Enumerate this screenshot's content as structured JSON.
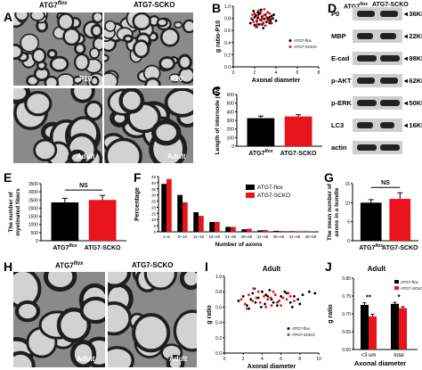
{
  "panels": {
    "A": {
      "letter": "A",
      "col1": "ATG7",
      "col1_sup": "flox",
      "col2": "ATG7-SCKO",
      "tag_top_left": "P10",
      "tag_top_right": "P10",
      "tag_bottom_left": "Adult",
      "tag_bottom_right": "Adult"
    },
    "B": {
      "letter": "B"
    },
    "C": {
      "letter": "C"
    },
    "D": {
      "letter": "D",
      "col1": "ATG7",
      "col1_sup": "flox",
      "col2": "ATG7-SCKO",
      "bands": [
        {
          "name": "P0",
          "kda": "36KDa"
        },
        {
          "name": "MBP",
          "kda": "22KDa"
        },
        {
          "name": "E-cad",
          "kda": "98KDa"
        },
        {
          "name": "p-AKT",
          "kda": "62KDa"
        },
        {
          "name": "p-ERK",
          "kda": "50KDa"
        },
        {
          "name": "LC3",
          "kda": "16KDa"
        },
        {
          "name": "actin",
          "kda": ""
        }
      ]
    },
    "E": {
      "letter": "E"
    },
    "F": {
      "letter": "F"
    },
    "G": {
      "letter": "G"
    },
    "H": {
      "letter": "H",
      "col1": "ATG7",
      "col1_sup": "flox",
      "col2": "ATG7-SCKO",
      "tag_left": "Adult",
      "tag_right": "Adult"
    },
    "I": {
      "letter": "I"
    },
    "J": {
      "letter": "J"
    }
  },
  "colors": {
    "flox": "#000000",
    "scko": "#e8131b",
    "em_bg": "#8a8a8a",
    "em_dark": "#1e1e1e",
    "em_light": "#d2d2d2"
  },
  "chart_data": [
    {
      "id": "B",
      "type": "scatter",
      "title": "",
      "xlabel": "Axonal diameter",
      "ylabel": "g ratio-P10",
      "xlim": [
        0,
        8
      ],
      "ylim": [
        0,
        1
      ],
      "xticks": [
        "0",
        "2",
        "4",
        "6",
        "8"
      ],
      "yticks": [
        "0.0",
        "0.2",
        "0.4",
        "0.6",
        "0.8",
        "1.0"
      ],
      "legend": [
        "ATG7-flox",
        "ATG7-SCKO"
      ],
      "legend_position": "right",
      "series": [
        {
          "name": "ATG7-flox",
          "x": [
            1.6,
            1.8,
            2.0,
            2.1,
            2.2,
            2.3,
            2.4,
            2.5,
            2.6,
            2.7,
            2.8,
            2.9,
            3.0,
            3.1,
            3.2,
            3.3,
            3.4,
            3.5,
            3.6,
            3.7,
            1.9,
            2.2,
            2.6,
            3.0,
            3.4,
            2.0,
            2.4,
            2.8,
            3.2,
            3.8,
            4.0,
            2.3,
            2.7
          ],
          "y": [
            0.72,
            0.78,
            0.69,
            0.85,
            0.75,
            0.81,
            0.7,
            0.88,
            0.77,
            0.83,
            0.72,
            0.79,
            0.86,
            0.74,
            0.9,
            0.78,
            0.82,
            0.76,
            0.84,
            0.8,
            0.92,
            0.66,
            0.94,
            0.68,
            0.72,
            0.82,
            0.87,
            0.64,
            0.8,
            0.86,
            0.76,
            0.9,
            0.7
          ]
        },
        {
          "name": "ATG7-SCKO",
          "x": [
            1.7,
            1.9,
            2.0,
            2.2,
            2.3,
            2.5,
            2.6,
            2.8,
            2.9,
            3.0,
            3.1,
            3.3,
            3.4,
            3.6,
            2.1,
            2.4,
            2.7,
            3.2,
            1.8,
            2.6,
            3.5,
            2.9,
            2.2
          ],
          "y": [
            0.8,
            0.74,
            0.88,
            0.7,
            0.84,
            0.78,
            0.91,
            0.73,
            0.86,
            0.68,
            0.82,
            0.76,
            0.88,
            0.72,
            0.66,
            0.93,
            0.8,
            0.9,
            0.86,
            0.7,
            0.8,
            0.95,
            0.77
          ]
        }
      ]
    },
    {
      "id": "C",
      "type": "bar",
      "xlabel": "",
      "ylabel": "Length of internode (uM)",
      "categories": [
        "ATG7flox",
        "ATG7-SCKO"
      ],
      "cat_sup": [
        "flox",
        ""
      ],
      "values": [
        325,
        345
      ],
      "errors": [
        25,
        20
      ],
      "ylim": [
        0,
        600
      ],
      "yticks": [
        "0",
        "100",
        "200",
        "300",
        "400",
        "500",
        "600"
      ]
    },
    {
      "id": "E",
      "type": "bar",
      "xlabel": "",
      "ylabel": "The number of myelinated fibers",
      "categories": [
        "ATG7flox",
        "ATG7-SCKO"
      ],
      "cat_sup": [
        "flox",
        ""
      ],
      "values": [
        2350,
        2500
      ],
      "errors": [
        250,
        280
      ],
      "ylim": [
        0,
        3500
      ],
      "yticks": [
        "0",
        "500",
        "1000",
        "1500",
        "2000",
        "2500",
        "3000",
        "3500"
      ],
      "annotation": "NS"
    },
    {
      "id": "F",
      "type": "bar",
      "xlabel": "Number of axons",
      "ylabel": "Percentage",
      "categories": [
        "1~5",
        "6~10",
        "11~15",
        "16~20",
        "21~25",
        "26~30",
        "31~35",
        "36~40",
        "41~45",
        "46~50"
      ],
      "ylim": [
        0,
        45
      ],
      "yticks": [
        "0",
        "5",
        "10",
        "15",
        "20",
        "25",
        "30",
        "35",
        "40",
        "45"
      ],
      "legend_position": "top-right",
      "series": [
        {
          "name": "ATG7-flox",
          "values": [
            39,
            30,
            16,
            8,
            4,
            2,
            1.2,
            0.8,
            0.5,
            0.3
          ]
        },
        {
          "name": "ATG7-SCKO",
          "values": [
            43,
            24,
            13,
            8,
            4,
            2.5,
            1.5,
            0.7,
            0.5,
            0.2
          ]
        }
      ]
    },
    {
      "id": "G",
      "type": "bar",
      "xlabel": "",
      "ylabel": "The mean number of axons in a bundle",
      "categories": [
        "ATG7flox",
        "ATG7-SCKO"
      ],
      "cat_sup": [
        "flox",
        ""
      ],
      "values": [
        10,
        11
      ],
      "errors": [
        0.8,
        1.6
      ],
      "ylim": [
        0,
        15
      ],
      "yticks": [
        "0",
        "5",
        "10",
        "15"
      ],
      "annotation": "NS"
    },
    {
      "id": "I",
      "type": "scatter",
      "title": "Adult",
      "xlabel": "Axonal diameter",
      "ylabel": "g ratio",
      "xlim": [
        0,
        10
      ],
      "ylim": [
        0,
        1
      ],
      "xticks": [
        "0",
        "2",
        "4",
        "6",
        "8",
        "10"
      ],
      "yticks": [
        "0.0",
        "0.2",
        "0.4",
        "0.6",
        "0.8",
        "1.0"
      ],
      "legend": [
        "ATG7-flox",
        "ATG7-SCKO"
      ],
      "legend_position": "bottom-right",
      "series": [
        {
          "name": "ATG7-flox",
          "x": [
            1.5,
            2.0,
            2.4,
            2.8,
            3.0,
            3.3,
            3.6,
            4.0,
            4.3,
            4.6,
            5.0,
            5.4,
            5.8,
            6.2,
            6.6,
            7.0,
            7.4,
            7.8,
            8.3,
            9.0,
            9.6,
            2.6,
            3.9,
            4.8,
            5.6,
            6.4,
            7.2,
            8.0,
            3.2,
            4.4,
            5.2,
            6.0
          ],
          "y": [
            0.68,
            0.74,
            0.62,
            0.7,
            0.78,
            0.66,
            0.72,
            0.8,
            0.64,
            0.74,
            0.7,
            0.76,
            0.68,
            0.72,
            0.78,
            0.66,
            0.74,
            0.7,
            0.76,
            0.8,
            0.78,
            0.58,
            0.6,
            0.82,
            0.62,
            0.8,
            0.6,
            0.64,
            0.84,
            0.76,
            0.66,
            0.74
          ]
        },
        {
          "name": "ATG7-SCKO",
          "x": [
            1.8,
            2.2,
            2.6,
            3.0,
            3.4,
            3.8,
            4.2,
            4.6,
            5.0,
            5.4,
            5.8,
            6.2,
            6.6,
            7.0,
            7.4,
            2.4,
            3.6,
            4.4,
            5.2,
            6.0,
            6.8,
            3.1,
            4.9,
            5.6
          ],
          "y": [
            0.7,
            0.64,
            0.76,
            0.68,
            0.72,
            0.66,
            0.74,
            0.7,
            0.62,
            0.76,
            0.68,
            0.72,
            0.7,
            0.74,
            0.68,
            0.58,
            0.8,
            0.6,
            0.8,
            0.62,
            0.78,
            0.84,
            0.72,
            0.66
          ]
        }
      ]
    },
    {
      "id": "J",
      "type": "bar",
      "title": "Adult",
      "xlabel": "Axonal diameter",
      "ylabel": "g ratio",
      "categories": [
        "<3 um",
        "total"
      ],
      "ylim": [
        0.6,
        0.8
      ],
      "yticks": [
        "0.60",
        "0.65",
        "0.70",
        "0.75",
        "0.80"
      ],
      "legend_position": "top-right",
      "series": [
        {
          "name": "ATG7-flox",
          "values": [
            0.725,
            0.728
          ],
          "errors": [
            0.006,
            0.004
          ]
        },
        {
          "name": "ATG7-SCKO",
          "values": [
            0.693,
            0.716
          ],
          "errors": [
            0.006,
            0.004
          ]
        }
      ],
      "annotations": [
        "**",
        "*"
      ]
    }
  ]
}
